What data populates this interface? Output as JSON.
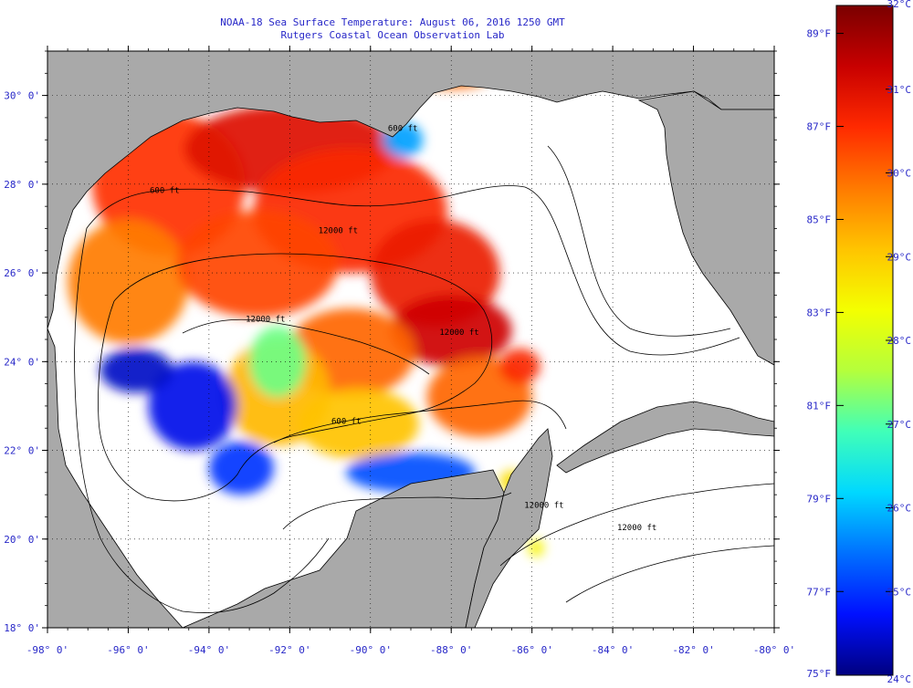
{
  "title": {
    "line1": "NOAA-18 Sea Surface Temperature:  August 06, 2016 1250 GMT",
    "line2": "Rutgers Coastal Ocean Observation Lab"
  },
  "map": {
    "lon_range": [
      -98,
      -80
    ],
    "lat_range": [
      18,
      31
    ],
    "lon_ticks": [
      {
        "value": -98,
        "label": "-98° 0'"
      },
      {
        "value": -96,
        "label": "-96° 0'"
      },
      {
        "value": -94,
        "label": "-94° 0'"
      },
      {
        "value": -92,
        "label": "-92° 0'"
      },
      {
        "value": -90,
        "label": "-90° 0'"
      },
      {
        "value": -88,
        "label": "-88° 0'"
      },
      {
        "value": -86,
        "label": "-86° 0'"
      },
      {
        "value": -84,
        "label": "-84° 0'"
      },
      {
        "value": -82,
        "label": "-82° 0'"
      },
      {
        "value": -80,
        "label": "-80° 0'"
      }
    ],
    "lat_ticks": [
      {
        "value": 30,
        "label": "30° 0'"
      },
      {
        "value": 28,
        "label": "28° 0'"
      },
      {
        "value": 26,
        "label": "26° 0'"
      },
      {
        "value": 24,
        "label": "24° 0'"
      },
      {
        "value": 22,
        "label": "22° 0'"
      },
      {
        "value": 20,
        "label": "20° 0'"
      },
      {
        "value": 18,
        "label": "18° 0'"
      }
    ],
    "contour_labels": [
      {
        "text": "600 ft",
        "lon": -95.1,
        "lat": 27.8
      },
      {
        "text": "12000 ft",
        "lon": -90.8,
        "lat": 26.9
      },
      {
        "text": "600 ft",
        "lon": -89.2,
        "lat": 29.2
      },
      {
        "text": "12000 ft",
        "lon": -92.6,
        "lat": 24.9
      },
      {
        "text": "12000 ft",
        "lon": -87.8,
        "lat": 24.6
      },
      {
        "text": "600 ft",
        "lon": -90.6,
        "lat": 22.6
      },
      {
        "text": "12000 ft",
        "lon": -85.7,
        "lat": 20.7
      },
      {
        "text": "12000 ft",
        "lon": -83.4,
        "lat": 20.2
      }
    ],
    "colors": {
      "land": "#a9a9a9",
      "no_data": "#ffffff",
      "contour": "#000000",
      "grid": "#000000"
    },
    "sst_regions": [
      {
        "lon": -95.0,
        "lat": 28.0,
        "rx": 1.9,
        "ry": 1.6,
        "temp": 30.5
      },
      {
        "lon": -92.0,
        "lat": 28.8,
        "rx": 2.6,
        "ry": 1.0,
        "temp": 31.0
      },
      {
        "lon": -90.5,
        "lat": 27.4,
        "rx": 2.4,
        "ry": 1.4,
        "temp": 30.6
      },
      {
        "lon": -96.0,
        "lat": 25.8,
        "rx": 1.5,
        "ry": 1.4,
        "temp": 29.8
      },
      {
        "lon": -92.8,
        "lat": 26.2,
        "rx": 2.0,
        "ry": 1.2,
        "temp": 30.3
      },
      {
        "lon": -88.4,
        "lat": 26.0,
        "rx": 1.6,
        "ry": 1.2,
        "temp": 30.8
      },
      {
        "lon": -88.0,
        "lat": 24.7,
        "rx": 1.5,
        "ry": 0.8,
        "temp": 31.2
      },
      {
        "lon": -90.5,
        "lat": 24.2,
        "rx": 1.6,
        "ry": 1.0,
        "temp": 30.0
      },
      {
        "lon": -92.3,
        "lat": 23.3,
        "rx": 1.3,
        "ry": 1.2,
        "temp": 29.2
      },
      {
        "lon": -90.3,
        "lat": 22.6,
        "rx": 1.5,
        "ry": 0.8,
        "temp": 29.1
      },
      {
        "lon": -87.3,
        "lat": 23.2,
        "rx": 1.3,
        "ry": 0.9,
        "temp": 30.0
      },
      {
        "lon": -94.4,
        "lat": 23.0,
        "rx": 1.1,
        "ry": 1.0,
        "temp": 24.6
      },
      {
        "lon": -95.8,
        "lat": 23.8,
        "rx": 0.9,
        "ry": 0.5,
        "temp": 24.4
      },
      {
        "lon": -93.2,
        "lat": 21.6,
        "rx": 0.8,
        "ry": 0.6,
        "temp": 25.0
      },
      {
        "lon": -89.0,
        "lat": 21.5,
        "rx": 1.6,
        "ry": 0.45,
        "temp": 25.2
      },
      {
        "lon": -92.3,
        "lat": 24.0,
        "rx": 0.7,
        "ry": 0.8,
        "temp": 27.2
      },
      {
        "lon": -89.2,
        "lat": 29.0,
        "rx": 0.5,
        "ry": 0.4,
        "temp": 25.8
      },
      {
        "lon": -88.0,
        "lat": 30.4,
        "rx": 0.9,
        "ry": 0.25,
        "temp": 30.0
      },
      {
        "lon": -86.3,
        "lat": 23.9,
        "rx": 0.5,
        "ry": 0.4,
        "temp": 30.6
      },
      {
        "lon": -86.5,
        "lat": 21.3,
        "rx": 0.3,
        "ry": 0.25,
        "temp": 28.8
      },
      {
        "lon": -85.9,
        "lat": 19.8,
        "rx": 0.2,
        "ry": 0.2,
        "temp": 28.5
      }
    ]
  },
  "colorbar": {
    "celsius_range": [
      24,
      32
    ],
    "celsius_ticks": [
      {
        "value": 32,
        "label": "32°C"
      },
      {
        "value": 31,
        "label": "31°C"
      },
      {
        "value": 30,
        "label": "30°C"
      },
      {
        "value": 29,
        "label": "29°C"
      },
      {
        "value": 28,
        "label": "28°C"
      },
      {
        "value": 27,
        "label": "27°C"
      },
      {
        "value": 26,
        "label": "26°C"
      },
      {
        "value": 25,
        "label": "25°C"
      },
      {
        "value": 24,
        "label": "24°C"
      }
    ],
    "fahrenheit_ticks": [
      {
        "value": 89,
        "label": "89°F"
      },
      {
        "value": 87,
        "label": "87°F"
      },
      {
        "value": 85,
        "label": "85°F"
      },
      {
        "value": 83,
        "label": "83°F"
      },
      {
        "value": 81,
        "label": "81°F"
      },
      {
        "value": 79,
        "label": "79°F"
      },
      {
        "value": 77,
        "label": "77°F"
      },
      {
        "value": 75,
        "label": "75°F"
      }
    ],
    "gradient_stops": [
      "#7a0000",
      "#c80000",
      "#ff2a00",
      "#ff7a00",
      "#ffc400",
      "#f4ff00",
      "#b4ff3c",
      "#40ffb8",
      "#00d8ff",
      "#0070ff",
      "#0010ff",
      "#000080"
    ],
    "tick_color": "#2828c8"
  }
}
